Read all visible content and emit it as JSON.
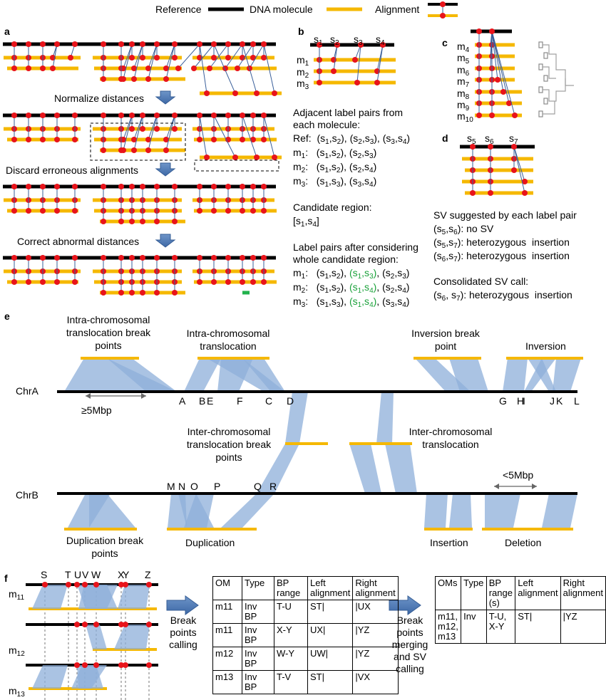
{
  "legend": {
    "reference": "Reference",
    "dna_molecule": "DNA molecule",
    "alignment": "Alignment"
  },
  "panel_labels": {
    "a": "a",
    "b": "b",
    "c": "c",
    "d": "d",
    "e": "e",
    "f": "f"
  },
  "panel_a": {
    "step1": "Normalize distances",
    "step2": "Discard erroneous alignments",
    "step3": "Correct abnormal distances"
  },
  "panel_b": {
    "sites": [
      "s1",
      "s2",
      "s3",
      "s4"
    ],
    "molecules": [
      "m1",
      "m2",
      "m3"
    ],
    "pairs_heading_1": "Adjacent label pairs from",
    "pairs_heading_2": "each molecule:",
    "rows": [
      {
        "name": "Ref:",
        "pairs": "(s1,s2), (s2,s3), (s3,s4)"
      },
      {
        "name": "m1:",
        "pairs": "(s1,s2), (s2,s3)"
      },
      {
        "name": "m2:",
        "pairs": "(s1,s2), (s2,s4)"
      },
      {
        "name": "m3:",
        "pairs": "(s1,s3), (s3,s4)"
      }
    ],
    "candidate_heading": "Candidate region:",
    "candidate_value": "[s1,s4]",
    "after_heading_1": "Label pairs after considering",
    "after_heading_2": "whole candidate region:",
    "after_rows": [
      {
        "name": "m1:",
        "a": "(s1,s2),",
        "g": "(s1,s3),",
        "b": "(s2,s3)"
      },
      {
        "name": "m2:",
        "a": "(s1,s2),",
        "g": "(s1,s4),",
        "b": "(s2,s4)"
      },
      {
        "name": "m3:",
        "a": "(s1,s3),",
        "g": "(s1,s4),",
        "b": "(s3,s4)"
      }
    ]
  },
  "panel_c": {
    "molecules": [
      "m4",
      "m5",
      "m6",
      "m7",
      "m8",
      "m9",
      "m10"
    ]
  },
  "panel_d": {
    "sites": [
      "s5",
      "s6",
      "s7"
    ],
    "heading": "SV suggested by each label pair",
    "rows": [
      "(s5,s6): no SV",
      "(s5,s7): heterozygous  insertion",
      "(s6,s7): heterozygous  insertion"
    ],
    "consolidated_heading": "Consolidated SV call:",
    "consolidated_value": "(s6, s7): heterozygous  insertion"
  },
  "panel_e": {
    "chrA": "ChrA",
    "chrB": "ChrB",
    "intra_bp": "Intra-chromosomal translocation break points",
    "intra": "Intra-chromosomal translocation",
    "inversion_bp": "Inversion break point",
    "inversion": "Inversion",
    "inter_bp": "Inter-chromosomal translocation break points",
    "inter": "Inter-chromosomal translocation",
    "dup_bp": "Duplication break points",
    "duplication": "Duplication",
    "insertion": "Insertion",
    "deletion": "Deletion",
    "ge5": "≥5Mbp",
    "lt5": "<5Mbp",
    "chrA_letters": [
      "A",
      "B",
      "E",
      "F",
      "C",
      "D",
      "G",
      "H",
      "I",
      "J",
      "K",
      "L"
    ],
    "chrB_letters": [
      "M",
      "N",
      "O",
      "P",
      "Q",
      "R"
    ]
  },
  "panel_f": {
    "letters": [
      "S",
      "T",
      "U",
      "V",
      "W",
      "X",
      "Y",
      "Z"
    ],
    "molecules": [
      "m11",
      "m12",
      "m13"
    ],
    "arrow1": "Break points calling",
    "arrow2": "Break points merging and SV calling",
    "table1": {
      "headers": [
        "OM",
        "Type",
        "BP range",
        "Left alignment",
        "Right alignment"
      ],
      "rows": [
        [
          "m11",
          "Inv BP",
          "T-U",
          "ST|",
          "|UX"
        ],
        [
          "m11",
          "Inv BP",
          "X-Y",
          "UX|",
          "|YZ"
        ],
        [
          "m12",
          "Inv BP",
          "W-Y",
          "UW|",
          "|YZ"
        ],
        [
          "m13",
          "Inv BP",
          "T-V",
          "ST|",
          "|VX"
        ]
      ]
    },
    "table2": {
      "headers": [
        "OMs",
        "Type",
        "BP range (s)",
        "Left alignment",
        "Right alignment"
      ],
      "rows": [
        [
          "m11, m12, m13",
          "Inv",
          "T-U, X-Y",
          "ST|",
          "|YZ"
        ]
      ]
    }
  },
  "colors": {
    "reference": "#000000",
    "molecule": "#f5b800",
    "label": "#e8141b",
    "alignment_line": "#3a5f9a",
    "band": "#8eafd9",
    "arrow": "#4a76b0",
    "green": "#1aa13a"
  }
}
